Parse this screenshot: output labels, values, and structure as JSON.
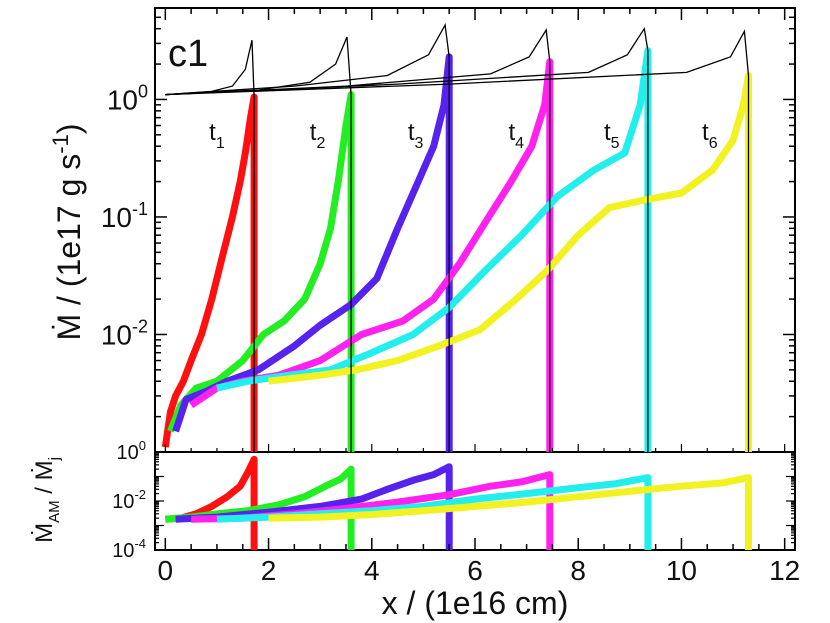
{
  "chart_data": [
    {
      "panel": "top",
      "type": "line",
      "panel_label": "c1",
      "ylabel": "M / (1e17 g s-1)",
      "yscale": "log",
      "ylim": [
        0.001,
        6
      ],
      "xlim": [
        -0.2,
        12.2
      ],
      "ytick_labels": [
        {
          "value": 1,
          "mantissa": "10",
          "exp": "0"
        },
        {
          "value": 0.1,
          "mantissa": "10",
          "exp": "-1"
        },
        {
          "value": 0.01,
          "mantissa": "10",
          "exp": "-2"
        }
      ],
      "time_labels": [
        {
          "base": "t",
          "sub": "1",
          "x": 1.0,
          "y": 0.45
        },
        {
          "base": "t",
          "sub": "2",
          "x": 2.95,
          "y": 0.45
        },
        {
          "base": "t",
          "sub": "3",
          "x": 4.85,
          "y": 0.45
        },
        {
          "base": "t",
          "sub": "4",
          "x": 6.8,
          "y": 0.45
        },
        {
          "base": "t",
          "sub": "5",
          "x": 8.65,
          "y": 0.45
        },
        {
          "base": "t",
          "sub": "6",
          "x": 10.55,
          "y": 0.45
        }
      ],
      "series": [
        {
          "name": "t1",
          "color": "#ff1010",
          "front_x": 1.72,
          "front_y": 1.05,
          "points": [
            [
              0.0,
              0.0011
            ],
            [
              0.1,
              0.0022
            ],
            [
              0.2,
              0.003
            ],
            [
              0.35,
              0.004
            ],
            [
              0.5,
              0.006
            ],
            [
              0.7,
              0.01
            ],
            [
              0.9,
              0.02
            ],
            [
              1.1,
              0.045
            ],
            [
              1.3,
              0.1
            ],
            [
              1.45,
              0.2
            ],
            [
              1.55,
              0.35
            ],
            [
              1.65,
              0.7
            ],
            [
              1.72,
              1.05
            ]
          ]
        },
        {
          "name": "t2",
          "color": "#22ee22",
          "front_x": 3.6,
          "front_y": 1.1,
          "points": [
            [
              0.1,
              0.0015
            ],
            [
              0.3,
              0.0025
            ],
            [
              0.6,
              0.0035
            ],
            [
              1.0,
              0.004
            ],
            [
              1.5,
              0.006
            ],
            [
              1.9,
              0.01
            ],
            [
              2.3,
              0.013
            ],
            [
              2.7,
              0.02
            ],
            [
              3.0,
              0.04
            ],
            [
              3.2,
              0.08
            ],
            [
              3.35,
              0.2
            ],
            [
              3.5,
              0.6
            ],
            [
              3.6,
              1.1
            ]
          ]
        },
        {
          "name": "t3",
          "color": "#5522ee",
          "front_x": 5.5,
          "front_y": 2.3,
          "points": [
            [
              0.2,
              0.0015
            ],
            [
              0.4,
              0.0028
            ],
            [
              0.8,
              0.0033
            ],
            [
              1.2,
              0.004
            ],
            [
              1.8,
              0.005
            ],
            [
              2.5,
              0.008
            ],
            [
              3.0,
              0.012
            ],
            [
              3.6,
              0.018
            ],
            [
              4.1,
              0.03
            ],
            [
              4.5,
              0.08
            ],
            [
              4.9,
              0.2
            ],
            [
              5.2,
              0.4
            ],
            [
              5.4,
              0.9
            ],
            [
              5.5,
              2.3
            ]
          ]
        },
        {
          "name": "t4",
          "color": "#ff22ee",
          "front_x": 7.45,
          "front_y": 2.1,
          "points": [
            [
              0.5,
              0.0025
            ],
            [
              1.0,
              0.0035
            ],
            [
              1.5,
              0.004
            ],
            [
              2.2,
              0.0045
            ],
            [
              3.0,
              0.006
            ],
            [
              3.8,
              0.01
            ],
            [
              4.6,
              0.013
            ],
            [
              5.2,
              0.02
            ],
            [
              5.7,
              0.04
            ],
            [
              6.2,
              0.09
            ],
            [
              6.7,
              0.2
            ],
            [
              7.1,
              0.4
            ],
            [
              7.35,
              0.9
            ],
            [
              7.45,
              2.1
            ]
          ]
        },
        {
          "name": "t5",
          "color": "#22eeee",
          "front_x": 9.35,
          "front_y": 2.6,
          "points": [
            [
              1.0,
              0.0035
            ],
            [
              1.6,
              0.004
            ],
            [
              2.4,
              0.0045
            ],
            [
              3.2,
              0.005
            ],
            [
              4.0,
              0.007
            ],
            [
              4.8,
              0.01
            ],
            [
              5.5,
              0.017
            ],
            [
              6.2,
              0.035
            ],
            [
              6.9,
              0.07
            ],
            [
              7.6,
              0.15
            ],
            [
              8.3,
              0.25
            ],
            [
              8.9,
              0.35
            ],
            [
              9.2,
              0.9
            ],
            [
              9.35,
              2.6
            ]
          ]
        },
        {
          "name": "t6",
          "color": "#f2f222",
          "front_x": 11.3,
          "front_y": 1.6,
          "points": [
            [
              2.0,
              0.004
            ],
            [
              3.0,
              0.0045
            ],
            [
              3.7,
              0.005
            ],
            [
              4.5,
              0.006
            ],
            [
              5.3,
              0.008
            ],
            [
              6.1,
              0.011
            ],
            [
              6.8,
              0.02
            ],
            [
              7.4,
              0.035
            ],
            [
              8.0,
              0.07
            ],
            [
              8.6,
              0.12
            ],
            [
              9.3,
              0.14
            ],
            [
              10.0,
              0.16
            ],
            [
              10.6,
              0.25
            ],
            [
              11.0,
              0.45
            ],
            [
              11.2,
              0.9
            ],
            [
              11.3,
              1.6
            ]
          ]
        }
      ],
      "black_curves": [
        {
          "name": "t1",
          "points": [
            [
              0.0,
              1.1
            ],
            [
              0.9,
              1.17
            ],
            [
              1.3,
              1.3
            ],
            [
              1.55,
              1.8
            ],
            [
              1.68,
              3.2
            ],
            [
              1.72,
              1.05
            ]
          ]
        },
        {
          "name": "t2",
          "points": [
            [
              0.0,
              1.1
            ],
            [
              1.8,
              1.2
            ],
            [
              2.8,
              1.4
            ],
            [
              3.3,
              2.0
            ],
            [
              3.52,
              3.4
            ],
            [
              3.6,
              1.1
            ]
          ]
        },
        {
          "name": "t3",
          "points": [
            [
              0.0,
              1.1
            ],
            [
              2.5,
              1.3
            ],
            [
              4.3,
              1.6
            ],
            [
              5.1,
              2.4
            ],
            [
              5.42,
              4.3
            ],
            [
              5.5,
              2.3
            ]
          ]
        },
        {
          "name": "t4",
          "points": [
            [
              0.0,
              1.1
            ],
            [
              3.5,
              1.3
            ],
            [
              6.3,
              1.65
            ],
            [
              7.05,
              2.3
            ],
            [
              7.38,
              3.9
            ],
            [
              7.45,
              2.1
            ]
          ]
        },
        {
          "name": "t5",
          "points": [
            [
              0.0,
              1.1
            ],
            [
              4.5,
              1.35
            ],
            [
              8.2,
              1.7
            ],
            [
              8.95,
              2.4
            ],
            [
              9.28,
              4.0
            ],
            [
              9.35,
              2.6
            ]
          ]
        },
        {
          "name": "t6",
          "points": [
            [
              0.0,
              1.1
            ],
            [
              5.5,
              1.35
            ],
            [
              10.1,
              1.7
            ],
            [
              10.95,
              2.3
            ],
            [
              11.22,
              3.8
            ],
            [
              11.3,
              1.6
            ]
          ]
        }
      ]
    },
    {
      "panel": "bottom",
      "type": "line",
      "ylabel": "M_AM / M_j",
      "yscale": "log",
      "ylim": [
        0.0001,
        1
      ],
      "xlim": [
        -0.2,
        12.2
      ],
      "xlabel": "x / (1e16 cm)",
      "xticks": [
        0,
        2,
        4,
        6,
        8,
        10,
        12
      ],
      "xtick_labels": [
        "0",
        "2",
        "4",
        "6",
        "8",
        "10",
        "12"
      ],
      "ytick_labels": [
        {
          "value": 1,
          "mantissa": "10",
          "exp": "0"
        },
        {
          "value": 0.01,
          "mantissa": "10",
          "exp": "-2"
        },
        {
          "value": 0.0001,
          "mantissa": "10",
          "exp": "-4"
        }
      ],
      "series": [
        {
          "name": "t1",
          "color": "#ff1010",
          "front_x": 1.72,
          "points": [
            [
              0.0,
              0.0018
            ],
            [
              0.3,
              0.002
            ],
            [
              0.6,
              0.003
            ],
            [
              0.9,
              0.006
            ],
            [
              1.2,
              0.015
            ],
            [
              1.45,
              0.04
            ],
            [
              1.6,
              0.15
            ],
            [
              1.72,
              0.5
            ]
          ]
        },
        {
          "name": "t2",
          "color": "#22ee22",
          "front_x": 3.6,
          "points": [
            [
              0.0,
              0.0018
            ],
            [
              0.5,
              0.0022
            ],
            [
              1.0,
              0.003
            ],
            [
              1.6,
              0.004
            ],
            [
              2.2,
              0.007
            ],
            [
              2.7,
              0.015
            ],
            [
              3.1,
              0.04
            ],
            [
              3.4,
              0.08
            ],
            [
              3.6,
              0.2
            ]
          ]
        },
        {
          "name": "t3",
          "color": "#5522ee",
          "front_x": 5.5,
          "points": [
            [
              0.2,
              0.0018
            ],
            [
              1.0,
              0.0022
            ],
            [
              2.0,
              0.0035
            ],
            [
              3.0,
              0.006
            ],
            [
              3.8,
              0.012
            ],
            [
              4.3,
              0.03
            ],
            [
              4.8,
              0.07
            ],
            [
              5.2,
              0.12
            ],
            [
              5.5,
              0.25
            ]
          ]
        },
        {
          "name": "t4",
          "color": "#ff22ee",
          "front_x": 7.45,
          "points": [
            [
              0.5,
              0.0018
            ],
            [
              1.5,
              0.002
            ],
            [
              2.5,
              0.003
            ],
            [
              3.5,
              0.005
            ],
            [
              4.5,
              0.009
            ],
            [
              5.5,
              0.018
            ],
            [
              6.3,
              0.04
            ],
            [
              6.9,
              0.06
            ],
            [
              7.45,
              0.12
            ]
          ]
        },
        {
          "name": "t5",
          "color": "#22eeee",
          "front_x": 9.35,
          "points": [
            [
              1.0,
              0.0018
            ],
            [
              2.0,
              0.0022
            ],
            [
              3.0,
              0.003
            ],
            [
              4.0,
              0.004
            ],
            [
              5.0,
              0.006
            ],
            [
              6.0,
              0.012
            ],
            [
              7.0,
              0.02
            ],
            [
              8.0,
              0.035
            ],
            [
              8.7,
              0.05
            ],
            [
              9.35,
              0.09
            ]
          ]
        },
        {
          "name": "t6",
          "color": "#f2f222",
          "front_x": 11.3,
          "points": [
            [
              2.0,
              0.002
            ],
            [
              3.0,
              0.0022
            ],
            [
              4.0,
              0.0028
            ],
            [
              5.0,
              0.004
            ],
            [
              6.0,
              0.006
            ],
            [
              7.0,
              0.009
            ],
            [
              8.0,
              0.015
            ],
            [
              9.0,
              0.025
            ],
            [
              10.0,
              0.04
            ],
            [
              10.8,
              0.055
            ],
            [
              11.3,
              0.09
            ]
          ]
        }
      ]
    }
  ]
}
